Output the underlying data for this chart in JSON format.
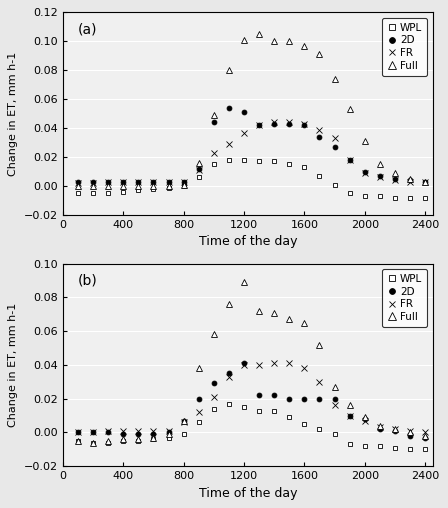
{
  "panel_a": {
    "label": "(a)",
    "ylim": [
      -0.02,
      0.12
    ],
    "yticks": [
      -0.02,
      0.0,
      0.02,
      0.04,
      0.06,
      0.08,
      0.1,
      0.12
    ],
    "WPL": {
      "x": [
        100,
        200,
        300,
        400,
        500,
        600,
        700,
        800,
        900,
        1000,
        1100,
        1200,
        1300,
        1400,
        1500,
        1600,
        1700,
        1800,
        1900,
        2000,
        2100,
        2200,
        2300,
        2400
      ],
      "y": [
        -0.005,
        -0.005,
        -0.005,
        -0.004,
        -0.003,
        -0.002,
        -0.001,
        0.0,
        0.006,
        0.015,
        0.018,
        0.018,
        0.017,
        0.017,
        0.015,
        0.013,
        0.007,
        0.001,
        -0.005,
        -0.007,
        -0.007,
        -0.008,
        -0.008,
        -0.008
      ]
    },
    "2D": {
      "x": [
        100,
        200,
        300,
        400,
        500,
        600,
        700,
        800,
        900,
        1000,
        1100,
        1200,
        1300,
        1400,
        1500,
        1600,
        1700,
        1800,
        1900,
        2000,
        2100,
        2200,
        2300,
        2400
      ],
      "y": [
        0.003,
        0.003,
        0.003,
        0.003,
        0.003,
        0.003,
        0.003,
        0.003,
        0.012,
        0.044,
        0.054,
        0.051,
        0.042,
        0.043,
        0.043,
        0.042,
        0.034,
        0.027,
        0.018,
        0.01,
        0.007,
        0.005,
        0.004,
        0.003
      ]
    },
    "FR": {
      "x": [
        100,
        200,
        300,
        400,
        500,
        600,
        700,
        800,
        900,
        1000,
        1100,
        1200,
        1300,
        1400,
        1500,
        1600,
        1700,
        1800,
        1900,
        2000,
        2100,
        2200,
        2300,
        2400
      ],
      "y": [
        0.002,
        0.002,
        0.003,
        0.003,
        0.003,
        0.003,
        0.003,
        0.003,
        0.011,
        0.023,
        0.029,
        0.037,
        0.042,
        0.044,
        0.044,
        0.043,
        0.039,
        0.033,
        0.018,
        0.009,
        0.006,
        0.004,
        0.003,
        0.003
      ]
    },
    "Full": {
      "x": [
        100,
        200,
        300,
        400,
        500,
        600,
        700,
        800,
        900,
        1000,
        1100,
        1200,
        1300,
        1400,
        1500,
        1600,
        1700,
        1800,
        1900,
        2000,
        2100,
        2200,
        2300,
        2400
      ],
      "y": [
        0.0,
        0.0,
        0.0,
        0.0,
        0.0,
        0.0,
        0.0,
        0.001,
        0.016,
        0.049,
        0.08,
        0.101,
        0.105,
        0.1,
        0.1,
        0.097,
        0.091,
        0.074,
        0.053,
        0.031,
        0.015,
        0.009,
        0.005,
        0.003
      ]
    }
  },
  "panel_b": {
    "label": "(b)",
    "ylim": [
      -0.02,
      0.1
    ],
    "yticks": [
      -0.02,
      0.0,
      0.02,
      0.04,
      0.06,
      0.08,
      0.1
    ],
    "WPL": {
      "x": [
        100,
        200,
        300,
        400,
        500,
        600,
        700,
        800,
        900,
        1000,
        1100,
        1200,
        1300,
        1400,
        1500,
        1600,
        1700,
        1800,
        1900,
        2000,
        2100,
        2200,
        2300,
        2400
      ],
      "y": [
        -0.005,
        -0.006,
        -0.006,
        -0.005,
        -0.005,
        -0.004,
        -0.003,
        -0.001,
        0.006,
        0.014,
        0.017,
        0.015,
        0.013,
        0.013,
        0.009,
        0.005,
        0.002,
        -0.001,
        -0.007,
        -0.008,
        -0.008,
        -0.009,
        -0.01,
        -0.01
      ]
    },
    "2D": {
      "x": [
        100,
        200,
        300,
        400,
        500,
        600,
        700,
        800,
        900,
        1000,
        1100,
        1200,
        1300,
        1400,
        1500,
        1600,
        1700,
        1800,
        1900,
        2000,
        2100,
        2200,
        2300,
        2400
      ],
      "y": [
        0.0,
        0.0,
        0.0,
        -0.001,
        -0.001,
        -0.001,
        0.0,
        0.007,
        0.02,
        0.029,
        0.035,
        0.041,
        0.022,
        0.022,
        0.02,
        0.02,
        0.02,
        0.02,
        0.01,
        0.008,
        0.002,
        0.001,
        -0.002,
        -0.003
      ]
    },
    "FR": {
      "x": [
        100,
        200,
        300,
        400,
        500,
        600,
        700,
        800,
        900,
        1000,
        1100,
        1200,
        1300,
        1400,
        1500,
        1600,
        1700,
        1800,
        1900,
        2000,
        2100,
        2200,
        2300,
        2400
      ],
      "y": [
        0.0,
        0.0,
        0.001,
        0.001,
        0.001,
        0.001,
        0.001,
        0.006,
        0.012,
        0.021,
        0.033,
        0.04,
        0.04,
        0.041,
        0.041,
        0.038,
        0.03,
        0.016,
        0.01,
        0.007,
        0.003,
        0.002,
        0.001,
        0.0
      ]
    },
    "Full": {
      "x": [
        100,
        200,
        300,
        400,
        500,
        600,
        700,
        800,
        900,
        1000,
        1100,
        1200,
        1300,
        1400,
        1500,
        1600,
        1700,
        1800,
        1900,
        2000,
        2100,
        2200,
        2300,
        2400
      ],
      "y": [
        -0.005,
        -0.006,
        -0.005,
        -0.004,
        -0.004,
        -0.003,
        -0.001,
        0.007,
        0.038,
        0.058,
        0.076,
        0.089,
        0.072,
        0.071,
        0.067,
        0.065,
        0.052,
        0.027,
        0.016,
        0.009,
        0.004,
        0.002,
        0.0,
        -0.002
      ]
    }
  },
  "xlabel": "Time of the day",
  "ylabel": "Change in ET, mm h-1",
  "series": [
    {
      "key": "WPL",
      "marker": "s",
      "color": "black",
      "markersize": 3.5,
      "markerfacecolor": "white",
      "label": "WPL"
    },
    {
      "key": "2D",
      "marker": "o",
      "color": "black",
      "markersize": 3.5,
      "markerfacecolor": "black",
      "label": "2D"
    },
    {
      "key": "FR",
      "marker": "x",
      "color": "black",
      "markersize": 4.0,
      "markerfacecolor": "black",
      "label": "FR"
    },
    {
      "key": "Full",
      "marker": "^",
      "color": "black",
      "markersize": 4.5,
      "markerfacecolor": "white",
      "label": "Full"
    }
  ],
  "xticks": [
    0,
    400,
    800,
    1200,
    1600,
    2000,
    2400
  ],
  "xlim": [
    0,
    2450
  ],
  "bg_color": "#e8e8e8",
  "plot_bg_color": "#f0f0f0",
  "grid_color": "#ffffff"
}
